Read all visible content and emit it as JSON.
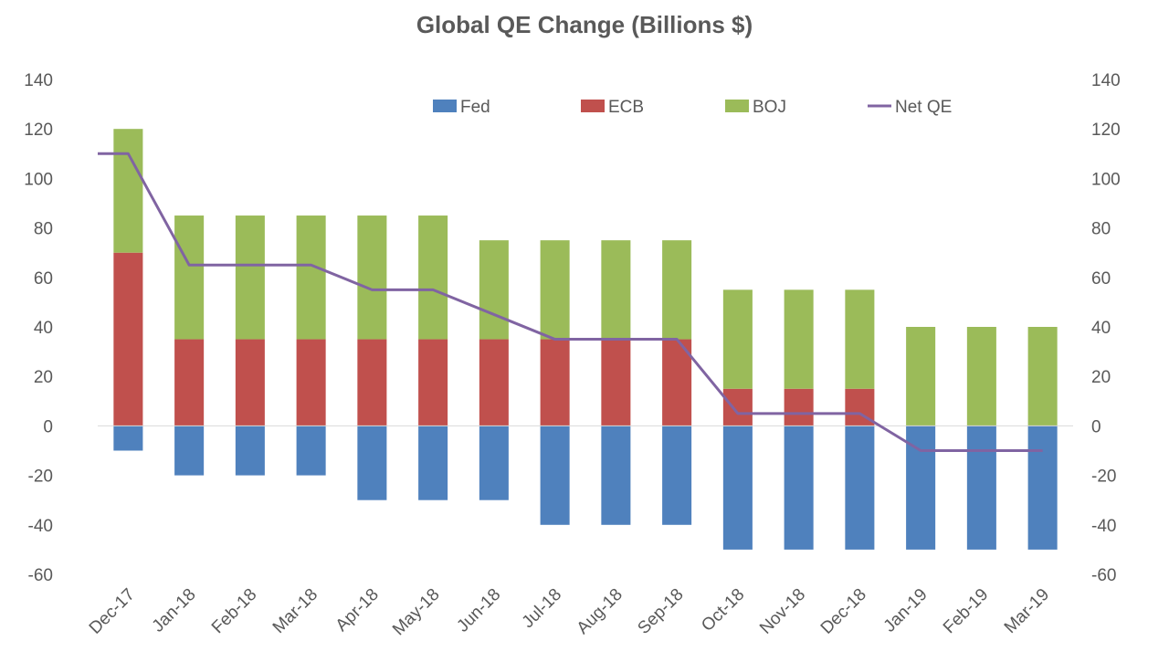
{
  "chart_data": {
    "type": "bar",
    "stacked": true,
    "title": "Global QE Change (Billions $)",
    "xlabel": "",
    "ylabel": "",
    "categories": [
      "Dec-17",
      "Jan-18",
      "Feb-18",
      "Mar-18",
      "Apr-18",
      "May-18",
      "Jun-18",
      "Jul-18",
      "Aug-18",
      "Sep-18",
      "Oct-18",
      "Nov-18",
      "Dec-18",
      "Jan-19",
      "Feb-19",
      "Mar-19"
    ],
    "series": [
      {
        "name": "Fed",
        "type": "bar",
        "color": "#4F81BD",
        "values": [
          -10,
          -20,
          -20,
          -20,
          -30,
          -30,
          -30,
          -40,
          -40,
          -40,
          -50,
          -50,
          -50,
          -50,
          -50,
          -50
        ]
      },
      {
        "name": "ECB",
        "type": "bar",
        "color": "#C0504D",
        "values": [
          70,
          35,
          35,
          35,
          35,
          35,
          35,
          35,
          35,
          35,
          15,
          15,
          15,
          0,
          0,
          0
        ]
      },
      {
        "name": "BOJ",
        "type": "bar",
        "color": "#9BBB59",
        "values": [
          50,
          50,
          50,
          50,
          50,
          50,
          40,
          40,
          40,
          40,
          40,
          40,
          40,
          40,
          40,
          40
        ]
      },
      {
        "name": "Net QE",
        "type": "line",
        "color": "#8064A2",
        "values": [
          110,
          65,
          65,
          65,
          55,
          55,
          45,
          35,
          35,
          35,
          5,
          5,
          5,
          -10,
          -10,
          -10
        ]
      }
    ],
    "ylim": [
      -60,
      140
    ],
    "yticks": [
      -60,
      -40,
      -20,
      0,
      20,
      40,
      60,
      80,
      100,
      120,
      140
    ],
    "secondary_axis": true,
    "legend_position": "top",
    "grid": false
  }
}
